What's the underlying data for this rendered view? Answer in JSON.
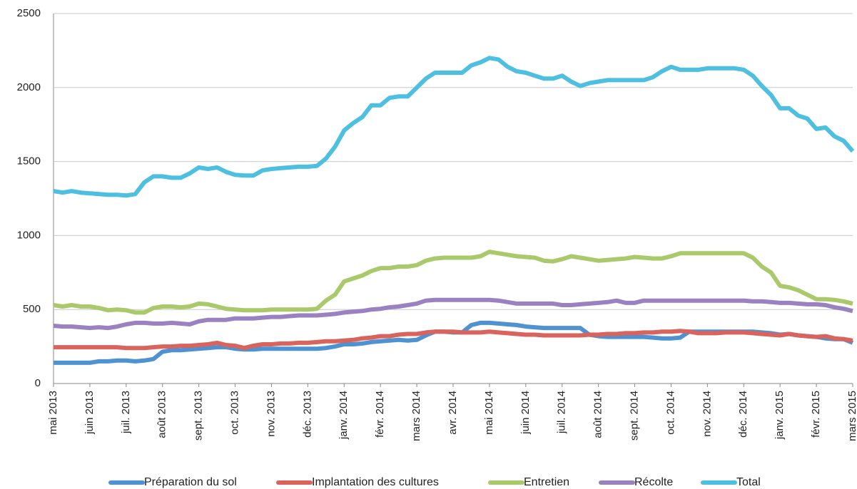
{
  "chart_data": {
    "type": "line",
    "categories": [
      "mai 2013",
      null,
      null,
      null,
      "juin 2013",
      null,
      null,
      null,
      "juil. 2013",
      null,
      null,
      null,
      "août 2013",
      null,
      null,
      null,
      "sept. 2013",
      null,
      null,
      null,
      "oct. 2013",
      null,
      null,
      null,
      "nov. 2013",
      null,
      null,
      null,
      "déc. 2013",
      null,
      null,
      null,
      "janv. 2014",
      null,
      null,
      null,
      "févr. 2014",
      null,
      null,
      null,
      "mars 2014",
      null,
      null,
      null,
      "avr. 2014",
      null,
      null,
      null,
      "mai 2014",
      null,
      null,
      null,
      "juin 2014",
      null,
      null,
      null,
      "juil. 2014",
      null,
      null,
      null,
      "août 2014",
      null,
      null,
      null,
      "sept. 2014",
      null,
      null,
      null,
      "oct. 2014",
      null,
      null,
      null,
      "nov. 2014",
      null,
      null,
      null,
      "déc. 2014",
      null,
      null,
      null,
      "janv. 2015",
      null,
      null,
      null,
      "févr. 2015",
      null,
      null,
      null,
      "mars 2015"
    ],
    "series": [
      {
        "name": "Préparation du sol",
        "color": "#4f92d2",
        "values": [
          140,
          140,
          140,
          140,
          140,
          150,
          150,
          155,
          155,
          150,
          155,
          165,
          215,
          225,
          225,
          230,
          235,
          240,
          245,
          245,
          235,
          230,
          230,
          235,
          235,
          235,
          235,
          235,
          235,
          235,
          240,
          250,
          265,
          265,
          270,
          280,
          285,
          290,
          295,
          290,
          295,
          325,
          350,
          350,
          345,
          345,
          395,
          410,
          410,
          405,
          400,
          395,
          385,
          380,
          375,
          375,
          375,
          375,
          375,
          330,
          320,
          315,
          315,
          315,
          315,
          315,
          310,
          305,
          305,
          310,
          350,
          350,
          350,
          350,
          350,
          350,
          350,
          350,
          345,
          340,
          330,
          335,
          325,
          320,
          315,
          305,
          300,
          300,
          275
        ]
      },
      {
        "name": "Implantation des cultures",
        "color": "#d9635d",
        "values": [
          245,
          245,
          245,
          245,
          245,
          245,
          245,
          245,
          240,
          240,
          240,
          245,
          250,
          250,
          255,
          255,
          260,
          265,
          275,
          260,
          255,
          240,
          255,
          265,
          265,
          270,
          270,
          275,
          275,
          280,
          285,
          285,
          290,
          295,
          305,
          310,
          320,
          320,
          330,
          335,
          335,
          345,
          350,
          350,
          350,
          345,
          345,
          345,
          350,
          345,
          340,
          335,
          330,
          330,
          325,
          325,
          325,
          325,
          325,
          330,
          330,
          335,
          335,
          340,
          340,
          345,
          345,
          350,
          350,
          355,
          350,
          340,
          340,
          340,
          345,
          345,
          345,
          340,
          335,
          330,
          325,
          335,
          325,
          320,
          315,
          320,
          305,
          300,
          290
        ]
      },
      {
        "name": "Entretien",
        "color": "#a9c96b",
        "values": [
          530,
          520,
          530,
          520,
          520,
          510,
          495,
          500,
          495,
          480,
          480,
          510,
          520,
          520,
          515,
          520,
          540,
          535,
          520,
          505,
          500,
          495,
          495,
          495,
          500,
          500,
          500,
          500,
          500,
          505,
          560,
          600,
          690,
          710,
          730,
          760,
          780,
          780,
          790,
          790,
          800,
          830,
          845,
          850,
          850,
          850,
          850,
          860,
          890,
          880,
          870,
          860,
          855,
          850,
          830,
          825,
          840,
          860,
          850,
          840,
          830,
          835,
          840,
          845,
          855,
          850,
          845,
          845,
          860,
          880,
          880,
          880,
          880,
          880,
          880,
          880,
          880,
          850,
          790,
          750,
          660,
          650,
          630,
          600,
          570,
          570,
          565,
          555,
          540
        ]
      },
      {
        "name": "Récolte",
        "color": "#9a82c1",
        "values": [
          390,
          385,
          385,
          380,
          375,
          380,
          375,
          385,
          400,
          410,
          410,
          405,
          405,
          410,
          405,
          400,
          420,
          430,
          430,
          430,
          440,
          440,
          440,
          445,
          450,
          450,
          455,
          460,
          460,
          460,
          465,
          470,
          480,
          485,
          490,
          500,
          505,
          515,
          520,
          530,
          540,
          560,
          565,
          565,
          565,
          565,
          565,
          565,
          565,
          560,
          550,
          540,
          540,
          540,
          540,
          540,
          530,
          530,
          535,
          540,
          545,
          550,
          560,
          545,
          545,
          560,
          560,
          560,
          560,
          560,
          560,
          560,
          560,
          560,
          560,
          560,
          560,
          555,
          555,
          550,
          545,
          545,
          540,
          535,
          535,
          530,
          515,
          505,
          490
        ]
      },
      {
        "name": "Total",
        "color": "#4dbfe0",
        "values": [
          1300,
          1290,
          1300,
          1290,
          1285,
          1280,
          1275,
          1275,
          1270,
          1280,
          1360,
          1400,
          1400,
          1390,
          1390,
          1420,
          1460,
          1450,
          1460,
          1430,
          1410,
          1405,
          1405,
          1440,
          1450,
          1455,
          1460,
          1465,
          1465,
          1470,
          1520,
          1600,
          1710,
          1760,
          1800,
          1880,
          1880,
          1930,
          1940,
          1940,
          2000,
          2060,
          2100,
          2100,
          2100,
          2100,
          2150,
          2170,
          2200,
          2190,
          2140,
          2110,
          2100,
          2080,
          2060,
          2060,
          2080,
          2040,
          2010,
          2030,
          2040,
          2050,
          2050,
          2050,
          2050,
          2050,
          2070,
          2110,
          2140,
          2120,
          2120,
          2120,
          2130,
          2130,
          2130,
          2130,
          2120,
          2080,
          2010,
          1950,
          1860,
          1860,
          1810,
          1790,
          1720,
          1730,
          1670,
          1640,
          1570
        ]
      }
    ],
    "ylim": [
      0,
      2500
    ],
    "yticks": [
      0,
      500,
      1000,
      1500,
      2000,
      2500
    ],
    "grid": true
  }
}
